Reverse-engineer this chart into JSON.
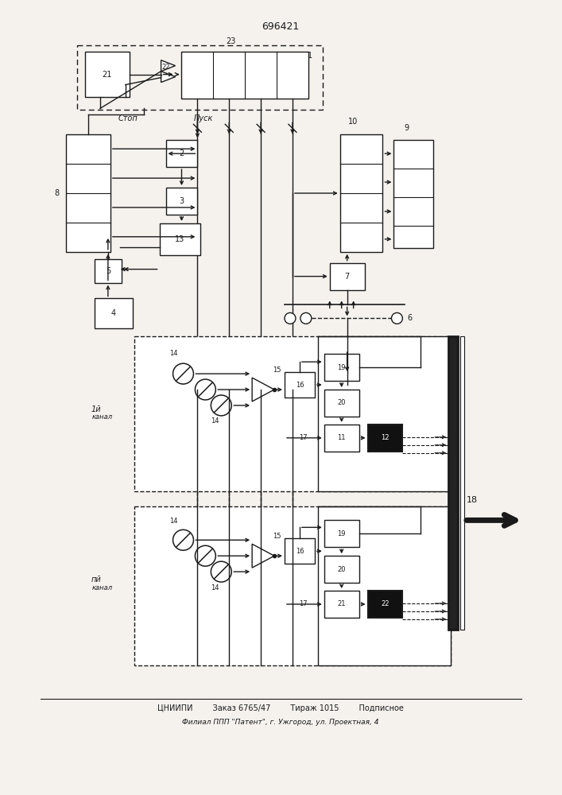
{
  "title": "696421",
  "bg_color": "#f5f2ee",
  "line_color": "#1a1a1a",
  "footer_line1": "ЦНИИПИ        Заказ 6765/47        Тираж 1015        Подписное",
  "footer_line2": "Филиал ППП \"Патент\", г. Ужгород, ул. Проектная, 4"
}
